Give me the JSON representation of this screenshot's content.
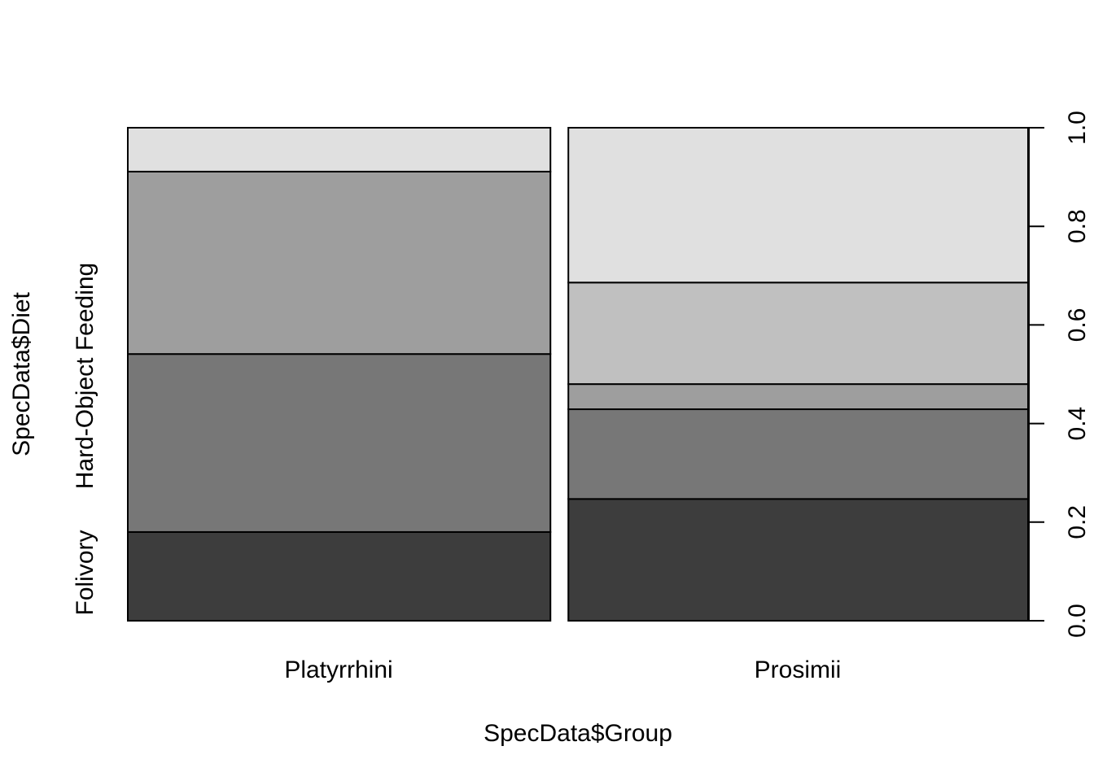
{
  "chart_data": {
    "type": "spineplot",
    "xlabel": "SpecData$Group",
    "ylabel": "SpecData$Diet",
    "categories": [
      "Platyrrhini",
      "Prosimii"
    ],
    "category_widths": [
      0.479,
      0.521
    ],
    "diet_levels_labeled": [
      "Folivory",
      "Hard-Object Feeding"
    ],
    "fill_colors": [
      "#3d3d3d",
      "#777777",
      "#9e9e9e",
      "#c0c0c0",
      "#e0e0e0"
    ],
    "stack_bounds": [
      [
        0,
        0.18,
        0.541,
        0.911,
        0.911,
        1.0
      ],
      [
        0,
        0.247,
        0.429,
        0.48,
        0.686,
        1.0
      ]
    ],
    "ylim": [
      0,
      1
    ],
    "yticks": [
      "0.0",
      "0.2",
      "0.4",
      "0.6",
      "0.8",
      "1.0"
    ]
  }
}
